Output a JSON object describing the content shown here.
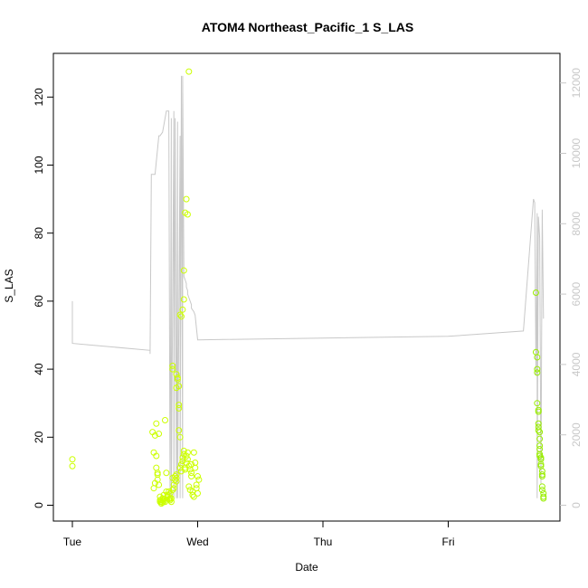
{
  "chart_data": {
    "type": "scatter",
    "title": "ATOM4 Northeast_Pacific_1 S_LAS",
    "xlabel": "Date",
    "ylabel": "S_LAS",
    "x_ticks": [
      "Tue",
      "Wed",
      "Thu",
      "Fri"
    ],
    "x_range_days": [
      0.0,
      3.9
    ],
    "ylim": [
      0,
      130
    ],
    "y_ticks": [
      0,
      20,
      40,
      60,
      80,
      100,
      120
    ],
    "y2lim": [
      0,
      12500
    ],
    "y2_ticks": [
      0,
      2000,
      4000,
      6000,
      8000,
      10000,
      12000
    ],
    "grid": false,
    "legend": "none",
    "colors": {
      "points_left": "#ccff00",
      "points_right": "#99ee00",
      "line": "#c8c8c8",
      "axis": "#000000",
      "right_axis": "#c8c8c8"
    },
    "series": [
      {
        "kind": "points",
        "x": [
          0.0,
          0.0,
          0.64,
          0.65,
          0.65,
          0.66,
          0.66,
          0.67,
          0.67,
          0.67,
          0.68,
          0.68,
          0.68,
          0.69,
          0.69,
          0.7,
          0.7,
          0.7,
          0.71,
          0.71,
          0.72,
          0.72,
          0.72,
          0.73,
          0.73,
          0.73,
          0.74,
          0.74,
          0.75,
          0.75,
          0.76,
          0.76,
          0.77,
          0.77,
          0.78,
          0.78,
          0.78,
          0.79,
          0.79,
          0.8,
          0.8,
          0.81,
          0.81,
          0.82,
          0.82,
          0.83,
          0.83,
          0.83,
          0.84,
          0.84,
          0.85,
          0.85,
          0.85,
          0.86,
          0.86,
          0.87,
          0.87,
          0.88,
          0.88,
          0.89,
          0.89,
          0.9,
          0.9,
          0.91,
          0.91,
          0.92,
          0.92,
          0.93,
          0.93,
          0.94,
          0.94,
          0.95,
          0.95,
          0.95,
          0.96,
          0.96,
          0.97,
          0.97,
          0.98,
          0.98,
          0.99,
          0.99,
          1.0,
          1.0,
          1.01,
          0.8,
          0.8,
          0.83,
          0.83,
          0.85,
          0.86,
          0.87,
          0.88,
          0.89,
          0.89,
          0.9,
          0.91,
          0.92,
          0.93
        ],
        "y": [
          13.5,
          11.5,
          21.5,
          15.5,
          5.0,
          6.5,
          20.5,
          24.0,
          14.5,
          11.0,
          9.5,
          9.0,
          7.5,
          21.0,
          6.0,
          2.5,
          1.5,
          1.0,
          0.5,
          1.0,
          0.8,
          2.0,
          1.5,
          1.2,
          3.0,
          1.8,
          1.0,
          25.0,
          9.5,
          4.0,
          2.5,
          3.0,
          1.8,
          4.0,
          2.0,
          1.5,
          3.5,
          2.0,
          1.0,
          4.5,
          8.0,
          6.0,
          5.0,
          8.5,
          7.5,
          7.0,
          8.0,
          9.0,
          37.5,
          37.0,
          22.0,
          28.5,
          29.5,
          20.0,
          11.0,
          10.0,
          12.0,
          13.0,
          14.0,
          16.0,
          15.0,
          11.0,
          10.5,
          12.5,
          14.5,
          13.5,
          15.5,
          11.5,
          5.5,
          4.5,
          10.5,
          9.5,
          12.0,
          8.5,
          4.0,
          3.0,
          2.5,
          15.5,
          12.5,
          11.0,
          6.0,
          5.0,
          3.5,
          8.5,
          7.5,
          41.0,
          40.0,
          38.5,
          34.5,
          35.0,
          56.0,
          55.5,
          57.5,
          60.5,
          69.0,
          86.0,
          90.0,
          85.5,
          127.5
        ]
      },
      {
        "kind": "points",
        "x": [
          3.7,
          3.7,
          3.71,
          3.71,
          3.71,
          3.71,
          3.72,
          3.72,
          3.72,
          3.72,
          3.72,
          3.73,
          3.73,
          3.73,
          3.73,
          3.73,
          3.73,
          3.74,
          3.74,
          3.74,
          3.74,
          3.75,
          3.75,
          3.75,
          3.75,
          3.75,
          3.76,
          3.76,
          3.76
        ],
        "y": [
          62.5,
          45.0,
          43.5,
          40.0,
          39.0,
          30.0,
          28.0,
          27.5,
          24.0,
          23.0,
          22.0,
          21.5,
          19.5,
          17.5,
          16.5,
          15.0,
          14.5,
          14.0,
          13.5,
          12.0,
          11.5,
          10.0,
          9.0,
          8.5,
          5.5,
          4.5,
          3.5,
          2.5,
          2.0
        ]
      },
      {
        "kind": "line",
        "x": [
          0.0,
          0.0,
          0.62,
          0.62,
          0.63,
          0.63,
          0.64,
          0.66,
          0.69,
          0.7,
          0.72,
          0.75,
          0.77,
          0.77,
          0.78,
          0.79,
          0.79,
          0.81,
          0.81,
          0.82,
          0.83,
          0.84,
          0.84,
          0.86,
          0.86,
          0.87,
          0.88,
          0.88,
          0.89,
          0.9,
          0.91,
          0.91,
          0.92,
          0.92,
          0.93,
          0.94,
          0.95,
          0.95,
          0.97,
          0.98,
          1.0,
          3.0,
          3.6,
          3.68,
          3.69,
          3.7,
          3.71,
          3.71,
          3.72,
          3.73,
          3.74,
          3.75,
          3.76,
          3.76
        ],
        "y2": [
          5800,
          4600,
          4400,
          4300,
          9400,
          9400,
          9400,
          9400,
          10500,
          10500,
          10600,
          11200,
          11200,
          11200,
          200,
          11000,
          200,
          11200,
          200,
          11000,
          200,
          10900,
          200,
          10500,
          200,
          12200,
          200,
          12200,
          6500,
          6400,
          6300,
          6200,
          6100,
          6000,
          5900,
          5800,
          5700,
          5600,
          5500,
          5400,
          4700,
          4800,
          4950,
          8700,
          8600,
          3700,
          8300,
          200,
          8200,
          7600,
          600,
          8400,
          5300,
          5300
        ]
      }
    ]
  }
}
